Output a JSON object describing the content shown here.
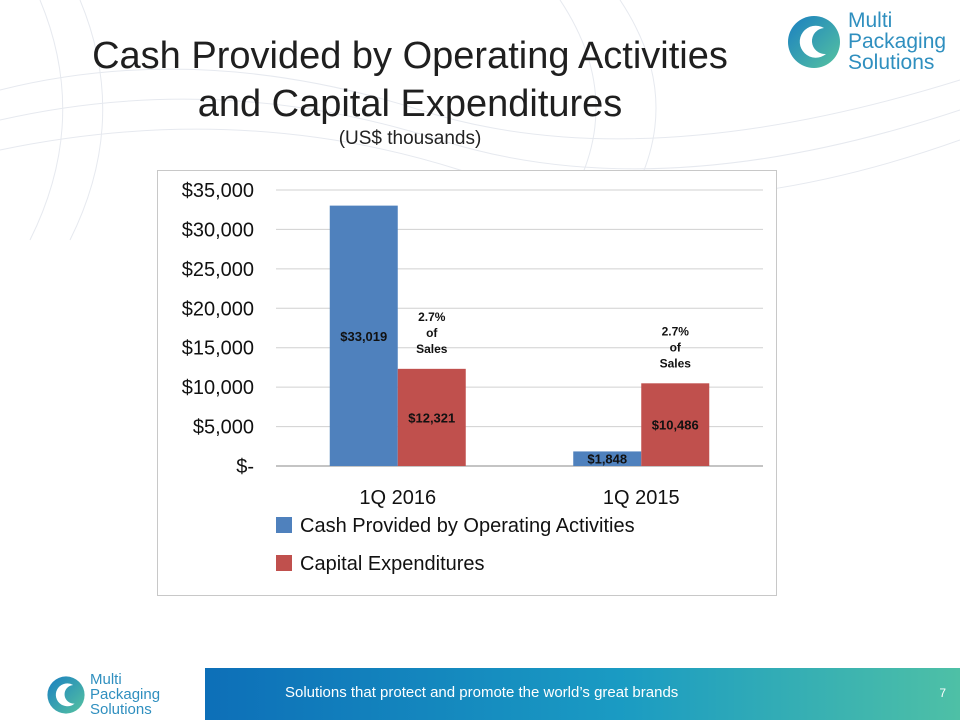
{
  "slide": {
    "title_line1": "Cash Provided by Operating Activities",
    "title_line2": "and Capital Expenditures",
    "subtitle": "(US$ thousands)",
    "footer_tagline": "Solutions that protect and promote the world’s great brands",
    "page_number": "7"
  },
  "logo": {
    "line1": "Multi",
    "line2": "Packaging",
    "line3": "Solutions"
  },
  "colors": {
    "cash": "#4f81bd",
    "capex": "#c0504d",
    "brand": "#2f8fbf"
  },
  "chart_data": {
    "type": "bar",
    "categories": [
      "1Q 2016",
      "1Q 2015"
    ],
    "series": [
      {
        "name": "Cash Provided by Operating Activities",
        "values": [
          33019,
          1848
        ],
        "labels": [
          "$33,019",
          "$1,848"
        ]
      },
      {
        "name": "Capital Expenditures",
        "values": [
          12321,
          10486
        ],
        "labels": [
          "$12,321",
          "$10,486"
        ]
      }
    ],
    "y_ticks": [
      0,
      5000,
      10000,
      15000,
      20000,
      25000,
      30000,
      35000
    ],
    "y_tick_labels": [
      "$-",
      "$5,000",
      "$10,000",
      "$15,000",
      "$20,000",
      "$25,000",
      "$30,000",
      "$35,000"
    ],
    "ylim": [
      0,
      35000
    ],
    "annotations": [
      {
        "category": "1Q 2016",
        "lines": [
          "2.7%",
          "of",
          "Sales"
        ]
      },
      {
        "category": "1Q 2015",
        "lines": [
          "2.7%",
          "of",
          "Sales"
        ]
      }
    ],
    "grid": true,
    "legend_position": "bottom"
  }
}
